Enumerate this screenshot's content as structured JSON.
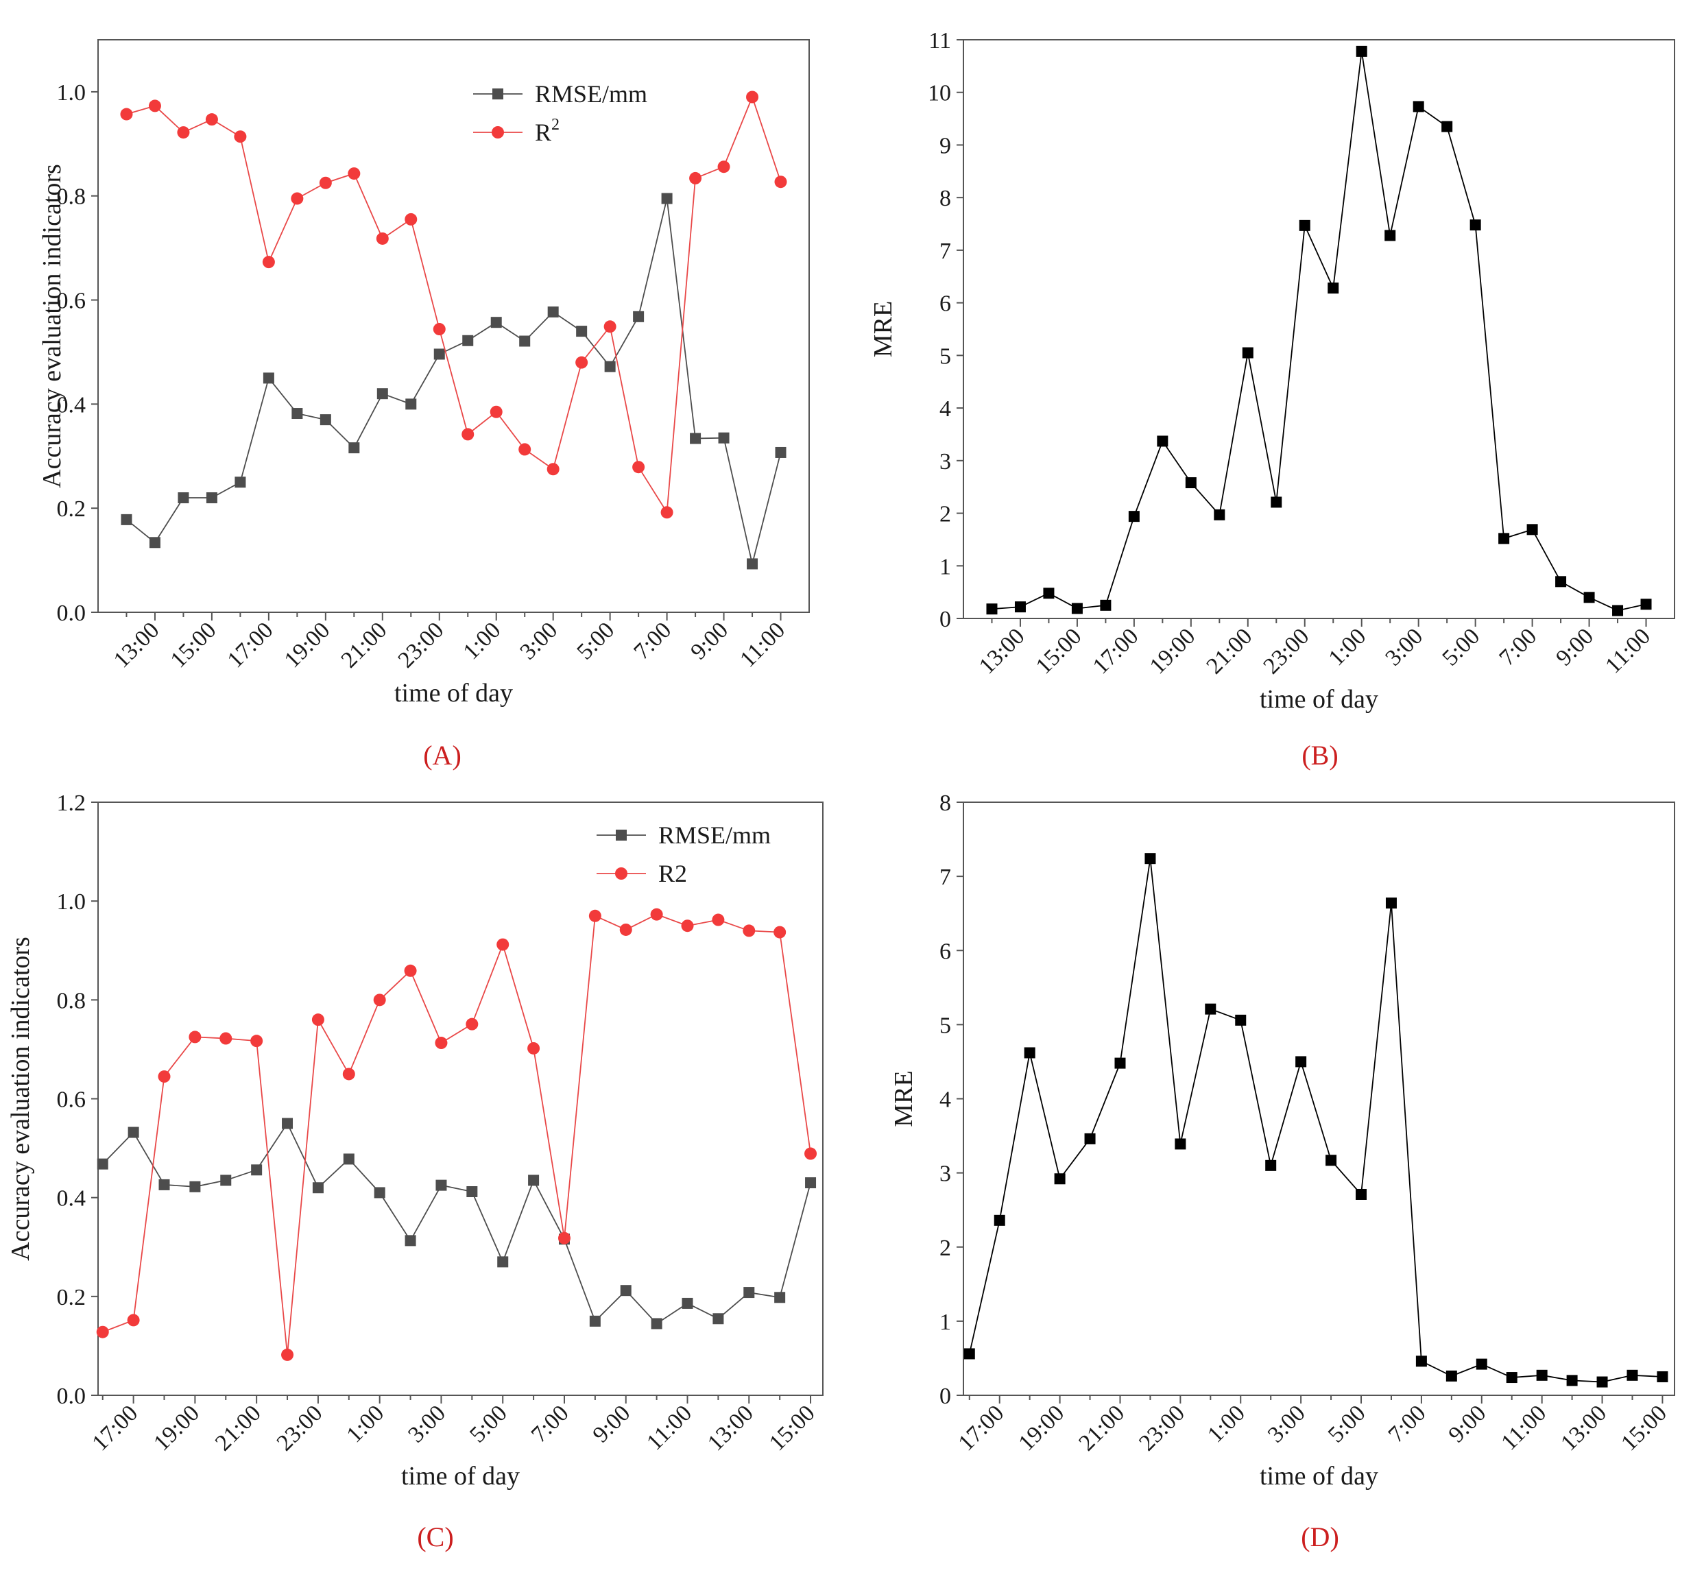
{
  "figure": {
    "panels": [
      "(A)",
      "(B)",
      "(C)",
      "(D)"
    ]
  },
  "colors": {
    "rmse": "#4d4d4d",
    "r2": "#f23a3a",
    "r2_line": "#e94848",
    "mre": "#000000",
    "axis": "#555555",
    "panel_label": "#cc1f1f"
  },
  "chart_data": [
    {
      "id": "A",
      "type": "line",
      "panel_label": "(A)",
      "xlabel": "time of day",
      "ylabel": "Accuracy evaluation indicators",
      "ylim": [
        0,
        1.1
      ],
      "yticks": [
        0.0,
        0.2,
        0.4,
        0.6,
        0.8,
        1.0
      ],
      "ytick_labels": [
        "0.0",
        "0.2",
        "0.4",
        "0.6",
        "0.8",
        "1.0"
      ],
      "x": [
        12,
        13,
        14,
        15,
        16,
        17,
        18,
        19,
        20,
        21,
        22,
        23,
        24,
        25,
        26,
        27,
        28,
        29,
        30,
        31,
        32,
        33,
        34,
        35
      ],
      "xlim": [
        11.0,
        36.0
      ],
      "xticks": [
        13,
        15,
        17,
        19,
        21,
        23,
        25,
        27,
        29,
        31,
        33,
        35
      ],
      "xtick_labels": [
        "13:00",
        "15:00",
        "17:00",
        "19:00",
        "21:00",
        "23:00",
        "1:00",
        "3:00",
        "5:00",
        "7:00",
        "9:00",
        "11:00"
      ],
      "legend_position": "top-right",
      "series": [
        {
          "name": "RMSE/mm",
          "legend_label": "RMSE/mm",
          "marker": "square",
          "color_key": "rmse",
          "values": [
            0.178,
            0.134,
            0.22,
            0.22,
            0.25,
            0.45,
            0.382,
            0.37,
            0.316,
            0.42,
            0.4,
            0.496,
            0.522,
            0.557,
            0.521,
            0.577,
            0.54,
            0.472,
            0.568,
            0.795,
            0.334,
            0.335,
            0.093,
            0.307
          ]
        },
        {
          "name": "R2",
          "legend_label": "R",
          "legend_sup": "2",
          "marker": "circle",
          "color_key": "r2",
          "values": [
            0.957,
            0.973,
            0.922,
            0.947,
            0.914,
            0.673,
            0.795,
            0.825,
            0.843,
            0.718,
            0.755,
            0.544,
            0.342,
            0.385,
            0.313,
            0.275,
            0.48,
            0.549,
            0.279,
            0.192,
            0.834,
            0.856,
            0.99,
            0.827
          ]
        }
      ]
    },
    {
      "id": "B",
      "type": "line",
      "panel_label": "(B)",
      "xlabel": "time of day",
      "ylabel": "MRE",
      "ylim": [
        0,
        11
      ],
      "yticks": [
        0,
        1,
        2,
        3,
        4,
        5,
        6,
        7,
        8,
        9,
        10,
        11
      ],
      "ytick_labels": [
        "0",
        "1",
        "2",
        "3",
        "4",
        "5",
        "6",
        "7",
        "8",
        "9",
        "10",
        "11"
      ],
      "x": [
        12,
        13,
        14,
        15,
        16,
        17,
        18,
        19,
        20,
        21,
        22,
        23,
        24,
        25,
        26,
        27,
        28,
        29,
        30,
        31,
        32,
        33,
        34,
        35
      ],
      "xlim": [
        11.0,
        36.0
      ],
      "xticks": [
        13,
        15,
        17,
        19,
        21,
        23,
        25,
        27,
        29,
        31,
        33,
        35
      ],
      "xtick_labels": [
        "13:00",
        "15:00",
        "17:00",
        "19:00",
        "21:00",
        "23:00",
        "1:00",
        "3:00",
        "5:00",
        "7:00",
        "9:00",
        "11:00"
      ],
      "series": [
        {
          "name": "MRE",
          "marker": "square",
          "color_key": "mre",
          "values": [
            0.18,
            0.22,
            0.48,
            0.19,
            0.25,
            1.94,
            3.37,
            2.58,
            1.97,
            5.05,
            2.21,
            7.47,
            6.28,
            10.78,
            7.28,
            9.73,
            9.35,
            7.48,
            1.52,
            1.69,
            0.7,
            0.4,
            0.15,
            0.27
          ]
        }
      ]
    },
    {
      "id": "C",
      "type": "line",
      "panel_label": "(C)",
      "xlabel": "time of day",
      "ylabel": "Accuracy evaluation indicators",
      "ylim": [
        0,
        1.2
      ],
      "yticks": [
        0.0,
        0.2,
        0.4,
        0.6,
        0.8,
        1.0,
        1.2
      ],
      "ytick_labels": [
        "0.0",
        "0.2",
        "0.4",
        "0.6",
        "0.8",
        "1.0",
        "1.2"
      ],
      "x": [
        16,
        17,
        18,
        19,
        20,
        21,
        22,
        23,
        24,
        25,
        26,
        27,
        28,
        29,
        30,
        31,
        32,
        33,
        34,
        35,
        36,
        37,
        38,
        39
      ],
      "xlim": [
        15.85,
        39.4
      ],
      "xticks": [
        17,
        19,
        21,
        23,
        25,
        27,
        29,
        31,
        33,
        35,
        37,
        39
      ],
      "xtick_labels": [
        "17:00",
        "19:00",
        "21:00",
        "23:00",
        "1:00",
        "3:00",
        "5:00",
        "7:00",
        "9:00",
        "11:00",
        "13:00",
        "15:00"
      ],
      "legend_position": "top-right",
      "series": [
        {
          "name": "RMSE/mm",
          "legend_label": "RMSE/mm",
          "marker": "square",
          "color_key": "rmse",
          "values": [
            0.468,
            0.532,
            0.426,
            0.422,
            0.435,
            0.456,
            0.55,
            0.42,
            0.478,
            0.41,
            0.313,
            0.425,
            0.412,
            0.27,
            0.435,
            0.316,
            0.15,
            0.212,
            0.145,
            0.186,
            0.155,
            0.208,
            0.198,
            0.43
          ]
        },
        {
          "name": "R2",
          "legend_label": "R2",
          "marker": "circle",
          "color_key": "r2",
          "values": [
            0.128,
            0.152,
            0.645,
            0.725,
            0.722,
            0.717,
            0.082,
            0.76,
            0.65,
            0.8,
            0.859,
            0.713,
            0.751,
            0.912,
            0.702,
            0.318,
            0.97,
            0.942,
            0.973,
            0.95,
            0.962,
            0.94,
            0.937,
            0.489
          ]
        }
      ]
    },
    {
      "id": "D",
      "type": "line",
      "panel_label": "(D)",
      "xlabel": "time of day",
      "ylabel": "MRE",
      "ylim": [
        0,
        8
      ],
      "yticks": [
        0,
        1,
        2,
        3,
        4,
        5,
        6,
        7,
        8
      ],
      "ytick_labels": [
        "0",
        "1",
        "2",
        "3",
        "4",
        "5",
        "6",
        "7",
        "8"
      ],
      "x": [
        16,
        17,
        18,
        19,
        20,
        21,
        22,
        23,
        24,
        25,
        26,
        27,
        28,
        29,
        30,
        31,
        32,
        33,
        34,
        35,
        36,
        37,
        38,
        39
      ],
      "xlim": [
        15.8,
        39.4
      ],
      "xticks": [
        17,
        19,
        21,
        23,
        25,
        27,
        29,
        31,
        33,
        35,
        37,
        39
      ],
      "xtick_labels": [
        "17:00",
        "19:00",
        "21:00",
        "23:00",
        "1:00",
        "3:00",
        "5:00",
        "7:00",
        "9:00",
        "11:00",
        "13:00",
        "15:00"
      ],
      "series": [
        {
          "name": "MRE",
          "marker": "square",
          "color_key": "mre",
          "values": [
            0.56,
            2.36,
            4.62,
            2.92,
            3.46,
            4.48,
            7.24,
            3.39,
            5.21,
            5.06,
            3.1,
            4.5,
            3.17,
            2.71,
            6.64,
            0.46,
            0.26,
            0.42,
            0.24,
            0.27,
            0.2,
            0.18,
            0.27,
            0.25
          ]
        }
      ]
    }
  ]
}
